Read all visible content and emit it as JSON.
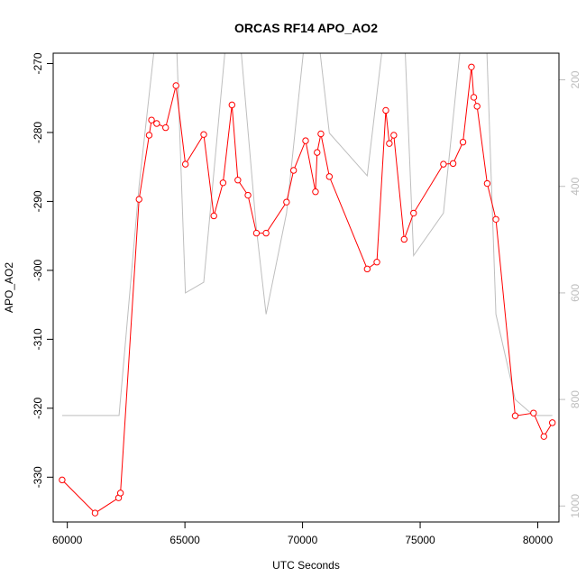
{
  "chart_data": {
    "type": "line",
    "title": "ORCAS RF14 APO_AO2",
    "xlabel": "UTC Seconds",
    "ylabel": "APO_AO2",
    "xlim": [
      59400,
      80900
    ],
    "ylim": [
      -336.5,
      -268.5
    ],
    "x_ticks": [
      60000,
      65000,
      70000,
      75000,
      80000
    ],
    "y_ticks": [
      -330,
      -320,
      -310,
      -300,
      -290,
      -280,
      -270
    ],
    "y2_ticks": [
      200,
      400,
      600,
      800,
      1000
    ],
    "y2lim": [
      1030,
      150
    ],
    "colors": {
      "primary": "#ff0000",
      "secondary": "#bebebe",
      "axis": "#000000",
      "secondary_axis": "#bdbdbd"
    },
    "grid": false,
    "series": [
      {
        "axis": "left",
        "marker": "open-circle",
        "color": "#ff0000",
        "x": [
          59780,
          61180,
          62180,
          62260,
          63050,
          63480,
          63580,
          63800,
          64180,
          64620,
          65020,
          65800,
          66230,
          66620,
          67000,
          67250,
          67680,
          68040,
          68450,
          69320,
          69620,
          70130,
          70550,
          70620,
          70780,
          71140,
          72750,
          73160,
          73540,
          73690,
          73880,
          74320,
          74720,
          75990,
          76400,
          76820,
          77180,
          77280,
          77420,
          77850,
          78220,
          79040,
          79820,
          80260,
          80620
        ],
        "y": [
          -330.4,
          -335.2,
          -333.0,
          -332.3,
          -289.7,
          -280.4,
          -278.2,
          -278.7,
          -279.3,
          -273.2,
          -284.6,
          -280.3,
          -292.1,
          -287.3,
          -276.0,
          -286.9,
          -289.1,
          -294.6,
          -294.6,
          -290.1,
          -285.5,
          -281.2,
          -288.6,
          -282.9,
          -280.2,
          -286.4,
          -299.8,
          -298.8,
          -276.8,
          -281.6,
          -280.4,
          -295.5,
          -291.7,
          -284.6,
          -284.5,
          -281.4,
          -270.5,
          -274.9,
          -276.2,
          -287.4,
          -292.6,
          -321.1,
          -320.7,
          -324.1,
          -322.1
        ]
      },
      {
        "axis": "right",
        "color": "#bebebe",
        "x": [
          59780,
          62200,
          63050,
          63800,
          64620,
          65020,
          65800,
          66800,
          67300,
          68040,
          68450,
          69320,
          70150,
          70620,
          71140,
          72750,
          73500,
          74320,
          74720,
          75990,
          76800,
          77800,
          78220,
          79040,
          79820,
          80620
        ],
        "y": [
          830,
          830,
          400,
          100,
          100,
          600,
          580,
          100,
          100,
          480,
          640,
          450,
          100,
          100,
          300,
          380,
          100,
          100,
          530,
          450,
          100,
          100,
          640,
          800,
          830,
          830
        ]
      }
    ]
  }
}
